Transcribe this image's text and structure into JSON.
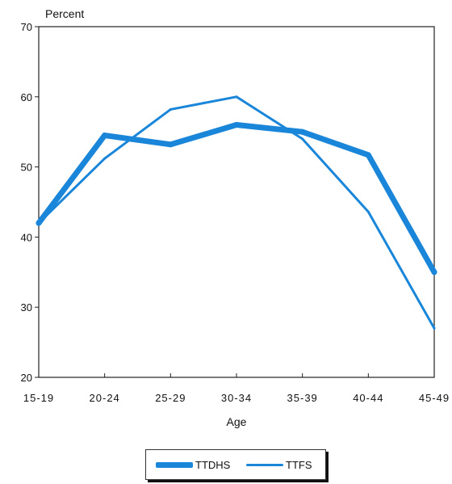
{
  "chart_data": {
    "type": "line",
    "title": "",
    "ylabel": "Percent",
    "xlabel": "Age",
    "categories": [
      "15-19",
      "20-24",
      "25-29",
      "30-34",
      "35-39",
      "40-44",
      "45-49"
    ],
    "ylim": [
      20,
      70
    ],
    "yticks": [
      20,
      30,
      40,
      50,
      60,
      70
    ],
    "grid": false,
    "legend_position": "bottom-center",
    "series": [
      {
        "name": "TTDHS",
        "values": [
          42,
          54.5,
          53.2,
          56,
          55,
          51.7,
          35
        ],
        "color": "#1a86d9",
        "style": "thick"
      },
      {
        "name": "TTFS",
        "values": [
          42,
          51.2,
          58.2,
          60,
          54,
          43.6,
          27
        ],
        "color": "#1a86d9",
        "style": "thin"
      }
    ]
  }
}
